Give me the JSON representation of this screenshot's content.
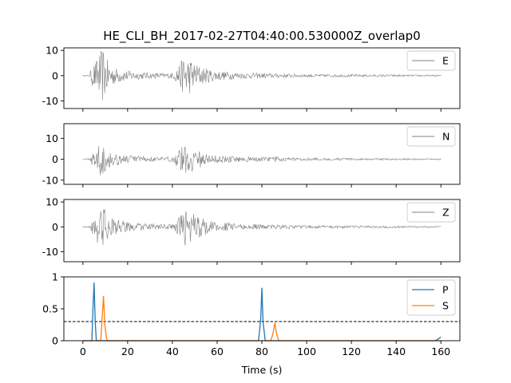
{
  "chart_data": {
    "type": "line",
    "title": "HE_CLI_BH_2017-02-27T04:40:00.530000Z_overlap0",
    "xlabel": "Time (s)",
    "xlim": [
      -8.5,
      168.5
    ],
    "xticks": [
      0,
      20,
      40,
      60,
      80,
      100,
      120,
      140,
      160
    ],
    "grid": false,
    "panels": [
      {
        "kind": "waveform",
        "ylim": [
          -13,
          11
        ],
        "yticks": [
          -10,
          0,
          10
        ],
        "legend_position": "top-right",
        "series": [
          {
            "name": "E",
            "color": "#808080"
          }
        ],
        "envelope": {
          "t": [
            0,
            3,
            4,
            6,
            7,
            8,
            9,
            10,
            12,
            15,
            20,
            25,
            30,
            38,
            41,
            42,
            44,
            46,
            47,
            50,
            55,
            60,
            70,
            80,
            90,
            100,
            120,
            140,
            160
          ],
          "amp": [
            0.2,
            0.3,
            4,
            6,
            9,
            10,
            11,
            8,
            5,
            3,
            2,
            1.5,
            1.2,
            1,
            1.5,
            4,
            6,
            9,
            8,
            5,
            3,
            2,
            1.2,
            1,
            0.8,
            0.6,
            0.5,
            0.4,
            0.3
          ]
        }
      },
      {
        "kind": "waveform",
        "ylim": [
          -12,
          17
        ],
        "yticks": [
          -10,
          0,
          10
        ],
        "legend_position": "top-right",
        "series": [
          {
            "name": "N",
            "color": "#808080"
          }
        ],
        "envelope": {
          "t": [
            0,
            3,
            4,
            6,
            7,
            8,
            9,
            10,
            12,
            15,
            20,
            25,
            30,
            38,
            41,
            42,
            44,
            46,
            47,
            50,
            55,
            60,
            70,
            80,
            86,
            90,
            100,
            120,
            140,
            160
          ],
          "amp": [
            0.2,
            0.3,
            3,
            5,
            7,
            8,
            7,
            6,
            4,
            3,
            2,
            1.5,
            1.2,
            1,
            1.5,
            4,
            6,
            12,
            8,
            5,
            3,
            2,
            1.2,
            1,
            1.5,
            0.8,
            0.6,
            0.5,
            0.4,
            0.3
          ]
        }
      },
      {
        "kind": "waveform",
        "ylim": [
          -14,
          11
        ],
        "yticks": [
          -10,
          0,
          10
        ],
        "legend_position": "top-right",
        "series": [
          {
            "name": "Z",
            "color": "#808080"
          }
        ],
        "envelope": {
          "t": [
            0,
            3,
            4,
            6,
            7,
            8,
            9,
            10,
            12,
            15,
            20,
            25,
            30,
            38,
            41,
            42,
            44,
            46,
            47,
            50,
            55,
            60,
            70,
            80,
            90,
            100,
            120,
            140,
            160
          ],
          "amp": [
            0.2,
            0.3,
            3,
            5,
            8,
            10,
            9,
            7,
            4,
            3,
            2,
            1.5,
            1.2,
            1,
            1.5,
            3,
            5,
            8,
            7,
            5,
            3,
            2,
            1.2,
            1,
            0.8,
            0.6,
            0.5,
            0.4,
            0.3
          ]
        }
      },
      {
        "kind": "probability",
        "ylim": [
          0,
          1
        ],
        "yticks": [
          0,
          0.5,
          1
        ],
        "threshold": 0.3,
        "legend_position": "top-right",
        "series": [
          {
            "name": "P",
            "color": "#1f77b4",
            "x": [
              0,
              4.0,
              4.5,
              5.0,
              5.5,
              6.0,
              78.5,
              79.5,
              80.0,
              80.5,
              81.5,
              157.5,
              159.0,
              160.0
            ],
            "y": [
              0,
              0,
              0.5,
              0.91,
              0.3,
              0,
              0,
              0.35,
              0.83,
              0.3,
              0,
              0,
              0.03,
              0.06
            ]
          },
          {
            "name": "S",
            "color": "#ff7f0e",
            "x": [
              0,
              8.0,
              8.5,
              9.2,
              9.8,
              10.5,
              11.0,
              84.0,
              85.0,
              85.8,
              86.5,
              87.5,
              160.0
            ],
            "y": [
              0,
              0,
              0.3,
              0.7,
              0.25,
              0.04,
              0,
              0,
              0.12,
              0.28,
              0.12,
              0,
              0
            ]
          }
        ]
      }
    ]
  }
}
